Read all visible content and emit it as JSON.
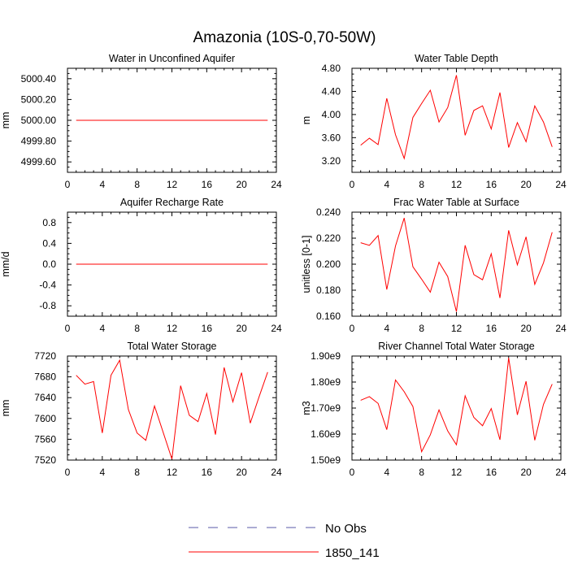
{
  "title": "Amazonia (10S-0,70-50W)",
  "chart_data": [
    {
      "type": "line",
      "title": "Water in Unconfined Aquifer",
      "ylabel": "mm",
      "xlim": [
        0,
        24
      ],
      "ylim": [
        4999.5,
        5000.5
      ],
      "xticks": [
        "0",
        "4",
        "8",
        "12",
        "16",
        "20",
        "24"
      ],
      "yticks": [
        {
          "v": 4999.6,
          "label": "4999.60"
        },
        {
          "v": 4999.8,
          "label": "4999.80"
        },
        {
          "v": 5000.0,
          "label": "5000.00"
        },
        {
          "v": 5000.2,
          "label": "5000.20"
        },
        {
          "v": 5000.4,
          "label": "5000.40"
        }
      ],
      "x": [
        1,
        2,
        3,
        4,
        5,
        6,
        7,
        8,
        9,
        10,
        11,
        12,
        13,
        14,
        15,
        16,
        17,
        18,
        19,
        20,
        21,
        22,
        23
      ],
      "series": [
        {
          "name": "1850_141",
          "color": "#ff0000",
          "values": [
            5000,
            5000,
            5000,
            5000,
            5000,
            5000,
            5000,
            5000,
            5000,
            5000,
            5000,
            5000,
            5000,
            5000,
            5000,
            5000,
            5000,
            5000,
            5000,
            5000,
            5000,
            5000,
            5000
          ]
        }
      ]
    },
    {
      "type": "line",
      "title": "Water Table Depth",
      "ylabel": "m",
      "xlim": [
        0,
        24
      ],
      "ylim": [
        3.0,
        4.8
      ],
      "xticks": [
        "0",
        "4",
        "8",
        "12",
        "16",
        "20",
        "24"
      ],
      "yticks": [
        {
          "v": 3.2,
          "label": "3.20"
        },
        {
          "v": 3.6,
          "label": "3.60"
        },
        {
          "v": 4.0,
          "label": "4.00"
        },
        {
          "v": 4.4,
          "label": "4.40"
        },
        {
          "v": 4.8,
          "label": "4.80"
        }
      ],
      "x": [
        1,
        2,
        3,
        4,
        5,
        6,
        7,
        8,
        9,
        10,
        11,
        12,
        13,
        14,
        15,
        16,
        17,
        18,
        19,
        20,
        21,
        22,
        23
      ],
      "series": [
        {
          "name": "1850_141",
          "color": "#ff0000",
          "values": [
            3.47,
            3.59,
            3.48,
            4.28,
            3.65,
            3.24,
            3.95,
            4.19,
            4.42,
            3.87,
            4.12,
            4.68,
            3.64,
            4.07,
            4.15,
            3.75,
            4.38,
            3.43,
            3.86,
            3.53,
            4.15,
            3.87,
            3.44
          ]
        }
      ]
    },
    {
      "type": "line",
      "title": "Aquifer Recharge Rate",
      "ylabel": "mm/d",
      "xlim": [
        0,
        24
      ],
      "ylim": [
        -1.0,
        1.0
      ],
      "xticks": [
        "0",
        "4",
        "8",
        "12",
        "16",
        "20",
        "24"
      ],
      "yticks": [
        {
          "v": -0.8,
          "label": "-0.8"
        },
        {
          "v": -0.4,
          "label": "-0.4"
        },
        {
          "v": 0.0,
          "label": "0.0"
        },
        {
          "v": 0.4,
          "label": "0.4"
        },
        {
          "v": 0.8,
          "label": "0.8"
        }
      ],
      "x": [
        1,
        2,
        3,
        4,
        5,
        6,
        7,
        8,
        9,
        10,
        11,
        12,
        13,
        14,
        15,
        16,
        17,
        18,
        19,
        20,
        21,
        22,
        23
      ],
      "series": [
        {
          "name": "1850_141",
          "color": "#ff0000",
          "values": [
            0,
            0,
            0,
            0,
            0,
            0,
            0,
            0,
            0,
            0,
            0,
            0,
            0,
            0,
            0,
            0,
            0,
            0,
            0,
            0,
            0,
            0,
            0
          ]
        }
      ]
    },
    {
      "type": "line",
      "title": "Frac Water Table at Surface",
      "ylabel": "unitless [0-1]",
      "xlim": [
        0,
        24
      ],
      "ylim": [
        0.16,
        0.24
      ],
      "xticks": [
        "0",
        "4",
        "8",
        "12",
        "16",
        "20",
        "24"
      ],
      "yticks": [
        {
          "v": 0.16,
          "label": "0.160"
        },
        {
          "v": 0.18,
          "label": "0.180"
        },
        {
          "v": 0.2,
          "label": "0.200"
        },
        {
          "v": 0.22,
          "label": "0.220"
        },
        {
          "v": 0.24,
          "label": "0.240"
        }
      ],
      "x": [
        1,
        2,
        3,
        4,
        5,
        6,
        7,
        8,
        9,
        10,
        11,
        12,
        13,
        14,
        15,
        16,
        17,
        18,
        19,
        20,
        21,
        22,
        23
      ],
      "series": [
        {
          "name": "1850_141",
          "color": "#ff0000",
          "values": [
            0.2165,
            0.2145,
            0.222,
            0.1805,
            0.214,
            0.2355,
            0.198,
            0.1885,
            0.1785,
            0.2015,
            0.1905,
            0.1635,
            0.2145,
            0.192,
            0.188,
            0.208,
            0.174,
            0.226,
            0.1995,
            0.221,
            0.1845,
            0.201,
            0.2245
          ]
        }
      ]
    },
    {
      "type": "line",
      "title": "Total Water Storage",
      "ylabel": "mm",
      "xlim": [
        0,
        24
      ],
      "ylim": [
        7520,
        7720
      ],
      "xticks": [
        "0",
        "4",
        "8",
        "12",
        "16",
        "20",
        "24"
      ],
      "yticks": [
        {
          "v": 7520,
          "label": "7520"
        },
        {
          "v": 7560,
          "label": "7560"
        },
        {
          "v": 7600,
          "label": "7600"
        },
        {
          "v": 7640,
          "label": "7640"
        },
        {
          "v": 7680,
          "label": "7680"
        },
        {
          "v": 7720,
          "label": "7720"
        }
      ],
      "x": [
        1,
        2,
        3,
        4,
        5,
        6,
        7,
        8,
        9,
        10,
        11,
        12,
        13,
        14,
        15,
        16,
        17,
        18,
        19,
        20,
        21,
        22,
        23
      ],
      "series": [
        {
          "name": "1850_141",
          "color": "#ff0000",
          "values": [
            7683,
            7666,
            7671,
            7572,
            7683,
            7712,
            7617,
            7572,
            7558,
            7624,
            7573,
            7522,
            7663,
            7606,
            7594,
            7648,
            7569,
            7698,
            7632,
            7688,
            7591,
            7641,
            7689
          ]
        }
      ]
    },
    {
      "type": "line",
      "title": "River Channel Total Water Storage",
      "ylabel": "m3",
      "xlim": [
        0,
        24
      ],
      "ylim": [
        1500000000.0,
        1900000000.0
      ],
      "xticks": [
        "0",
        "4",
        "8",
        "12",
        "16",
        "20",
        "24"
      ],
      "yticks": [
        {
          "v": 1500000000.0,
          "label": "1.50e9"
        },
        {
          "v": 1600000000.0,
          "label": "1.60e9"
        },
        {
          "v": 1700000000.0,
          "label": "1.70e9"
        },
        {
          "v": 1800000000.0,
          "label": "1.80e9"
        },
        {
          "v": 1900000000.0,
          "label": "1.90e9"
        }
      ],
      "x": [
        1,
        2,
        3,
        4,
        5,
        6,
        7,
        8,
        9,
        10,
        11,
        12,
        13,
        14,
        15,
        16,
        17,
        18,
        19,
        20,
        21,
        22,
        23
      ],
      "series": [
        {
          "name": "1850_141",
          "color": "#ff0000",
          "values": [
            1730000000.0,
            1744000000.0,
            1718000000.0,
            1617000000.0,
            1808000000.0,
            1763000000.0,
            1706000000.0,
            1532000000.0,
            1597000000.0,
            1693000000.0,
            1612000000.0,
            1559000000.0,
            1747000000.0,
            1664000000.0,
            1632000000.0,
            1698000000.0,
            1578000000.0,
            1893000000.0,
            1674000000.0,
            1803000000.0,
            1576000000.0,
            1714000000.0,
            1792000000.0
          ]
        }
      ]
    }
  ],
  "legend": {
    "items": [
      {
        "label": "No Obs",
        "color": "#5a5aa8",
        "style": "dashed"
      },
      {
        "label": "1850_141",
        "color": "#ff0000",
        "style": "solid"
      }
    ]
  }
}
